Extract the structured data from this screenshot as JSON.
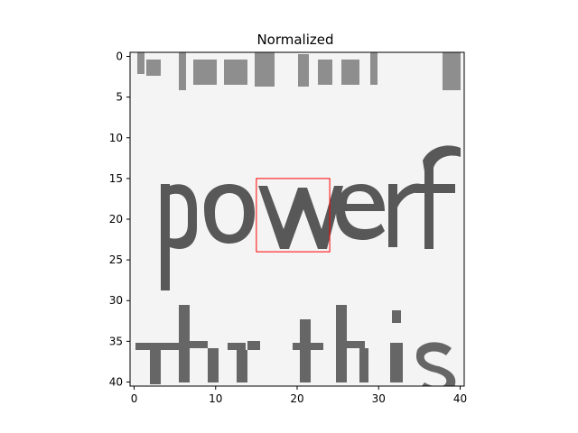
{
  "figure": {
    "title": "Normalized",
    "x_tick_labels": [
      "0",
      "10",
      "20",
      "30",
      "40"
    ],
    "y_tick_labels": [
      "0",
      "5",
      "10",
      "15",
      "20",
      "25",
      "30",
      "35",
      "40"
    ]
  },
  "image": {
    "kind": "grayscale-crop",
    "colormap": "gray",
    "visible_text_rows": [
      {
        "text": "...general...",
        "row_range": [
          0,
          5
        ]
      },
      {
        "text": "powerf",
        "row_range": [
          15,
          29
        ]
      },
      {
        "text": "hr this",
        "row_range": [
          31,
          40
        ]
      }
    ]
  },
  "chart_data": {
    "type": "heatmap",
    "title": "Normalized",
    "xlabel": "",
    "ylabel": "",
    "xlim": [
      -0.5,
      40.5
    ],
    "ylim": [
      40.5,
      -0.5
    ],
    "x_ticks": [
      0,
      10,
      20,
      30,
      40
    ],
    "y_ticks": [
      0,
      5,
      10,
      15,
      20,
      25,
      30,
      35,
      40
    ],
    "grid": false,
    "highlight_rectangle": {
      "x": [
        15,
        24
      ],
      "y": [
        15,
        24
      ],
      "color": "#ff0000"
    }
  }
}
